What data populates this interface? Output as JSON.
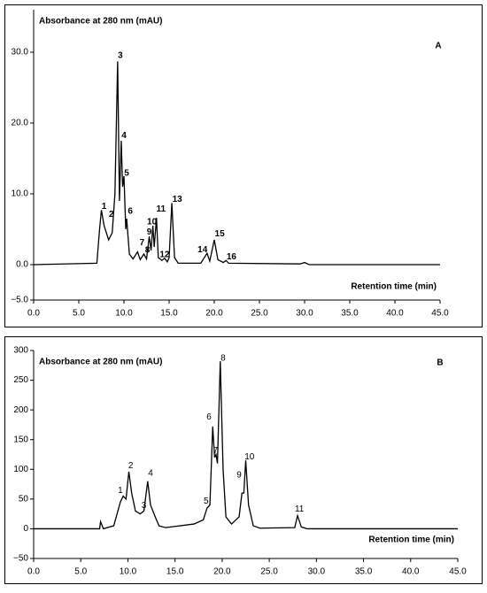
{
  "chart_data": [
    {
      "type": "line",
      "panel_label": "A",
      "y_label": "Absorbance at 280 nm (mAU)",
      "x_label": "Retention time (min)",
      "color": "#000000",
      "x": [
        0,
        7,
        7.3,
        7.5,
        7.8,
        8.3,
        8.7,
        9.0,
        9.3,
        9.5,
        9.7,
        9.85,
        10.0,
        10.2,
        10.3,
        10.6,
        11,
        11.5,
        11.8,
        12.2,
        12.5,
        12.8,
        13.0,
        13.2,
        13.35,
        13.6,
        13.8,
        14.2,
        14.5,
        14.8,
        15.0,
        15.3,
        15.6,
        16,
        18.5,
        19.2,
        19.5,
        20.0,
        20.4,
        21,
        21.3,
        21.6,
        29.5,
        30,
        30.5,
        45
      ],
      "values": [
        0,
        0.2,
        5,
        7.7,
        5.5,
        3.5,
        4.5,
        10,
        28.7,
        9,
        17.5,
        11,
        12.5,
        5,
        6.5,
        1.5,
        0.8,
        1.8,
        0.7,
        1.5,
        0.8,
        4,
        2,
        5.5,
        2.5,
        6.6,
        1,
        0.6,
        0.9,
        0.4,
        1,
        8.7,
        1,
        0.2,
        0.2,
        1.6,
        0.5,
        3.5,
        0.7,
        0.3,
        0.6,
        0.2,
        0.1,
        0.3,
        0,
        0
      ],
      "annotations": [
        {
          "label": "1",
          "x": 7.8,
          "y": 8.2
        },
        {
          "label": "2",
          "x": 8.6,
          "y": 7.1
        },
        {
          "label": "3",
          "x": 9.6,
          "y": 29.5
        },
        {
          "label": "4",
          "x": 10.0,
          "y": 18.2
        },
        {
          "label": "5",
          "x": 10.3,
          "y": 12.9
        },
        {
          "label": "6",
          "x": 10.7,
          "y": 7.5
        },
        {
          "label": "7",
          "x": 12.0,
          "y": 3.1
        },
        {
          "label": "8",
          "x": 12.6,
          "y": 2.0
        },
        {
          "label": "9",
          "x": 12.8,
          "y": 4.6
        },
        {
          "label": "10",
          "x": 13.1,
          "y": 6.0
        },
        {
          "label": "11",
          "x": 14.1,
          "y": 7.8
        },
        {
          "label": "12",
          "x": 14.5,
          "y": 1.4
        },
        {
          "label": "13",
          "x": 15.9,
          "y": 9.2
        },
        {
          "label": "14",
          "x": 18.7,
          "y": 2.1
        },
        {
          "label": "15",
          "x": 20.6,
          "y": 4.3
        },
        {
          "label": "16",
          "x": 21.9,
          "y": 1.1
        }
      ],
      "xlim": [
        0,
        45
      ],
      "ylim": [
        -5,
        36
      ],
      "xticks": [
        {
          "value": 0,
          "label": "0.0"
        },
        {
          "value": 5,
          "label": "5.0"
        },
        {
          "value": 10,
          "label": "10.0"
        },
        {
          "value": 15,
          "label": "15.0"
        },
        {
          "value": 20,
          "label": "20.0"
        },
        {
          "value": 25,
          "label": "25.0"
        },
        {
          "value": 30,
          "label": "30.0"
        },
        {
          "value": 35,
          "label": "35.0"
        },
        {
          "value": 40,
          "label": "40.0"
        },
        {
          "value": 45,
          "label": "45.0"
        }
      ],
      "yticks": [
        {
          "value": -5,
          "label": "−5.0"
        },
        {
          "value": 0,
          "label": "0.0"
        },
        {
          "value": 10,
          "label": "10.0"
        },
        {
          "value": 20,
          "label": "20.0"
        },
        {
          "value": 30,
          "label": "30.0"
        }
      ]
    },
    {
      "type": "line",
      "panel_label": "B",
      "y_label": "Absorbance at 280 nm (mAU)",
      "x_label": "Retention time (min)",
      "color": "#000000",
      "x": [
        0,
        7.0,
        7.1,
        7.4,
        8.5,
        9.2,
        9.5,
        9.8,
        10.1,
        10.4,
        10.8,
        11.3,
        11.7,
        12.1,
        12.4,
        12.9,
        13.3,
        14,
        17,
        18.0,
        18.4,
        18.7,
        19.0,
        19.2,
        19.35,
        19.5,
        19.8,
        20.1,
        20.4,
        21,
        21.8,
        22.1,
        22.3,
        22.5,
        22.8,
        23.3,
        24,
        27.7,
        28.0,
        28.4,
        29,
        45
      ],
      "values": [
        0,
        0,
        12,
        0,
        5,
        45,
        55,
        50,
        96,
        60,
        30,
        25,
        30,
        80,
        40,
        20,
        5,
        2,
        8,
        15,
        35,
        40,
        172,
        120,
        125,
        110,
        282,
        100,
        20,
        8,
        20,
        60,
        60,
        115,
        40,
        5,
        1,
        2,
        22,
        3,
        0,
        0
      ],
      "annotations": [
        {
          "label": "1",
          "x": 9.2,
          "y": 64
        },
        {
          "label": "2",
          "x": 10.3,
          "y": 106
        },
        {
          "label": "3",
          "x": 11.7,
          "y": 39
        },
        {
          "label": "4",
          "x": 12.4,
          "y": 93
        },
        {
          "label": "5",
          "x": 18.3,
          "y": 46
        },
        {
          "label": "6",
          "x": 18.6,
          "y": 188
        },
        {
          "label": "7",
          "x": 19.3,
          "y": 131
        },
        {
          "label": "8",
          "x": 20.1,
          "y": 287
        },
        {
          "label": "9",
          "x": 21.8,
          "y": 90
        },
        {
          "label": "10",
          "x": 22.9,
          "y": 121
        },
        {
          "label": "11",
          "x": 28.2,
          "y": 33
        }
      ],
      "xlim": [
        0,
        45
      ],
      "ylim": [
        -50,
        300
      ],
      "xticks": [
        {
          "value": 0,
          "label": "0.0"
        },
        {
          "value": 5,
          "label": "5.0"
        },
        {
          "value": 10,
          "label": "10.0"
        },
        {
          "value": 15,
          "label": "15.0"
        },
        {
          "value": 20,
          "label": "20.0"
        },
        {
          "value": 25,
          "label": "25.0"
        },
        {
          "value": 30,
          "label": "30.0"
        },
        {
          "value": 35,
          "label": "35.0"
        },
        {
          "value": 40,
          "label": "40.0"
        },
        {
          "value": 45,
          "label": "45.0"
        }
      ],
      "yticks": [
        {
          "value": -50,
          "label": "−50"
        },
        0,
        50,
        100,
        150,
        200,
        250,
        300
      ]
    }
  ]
}
